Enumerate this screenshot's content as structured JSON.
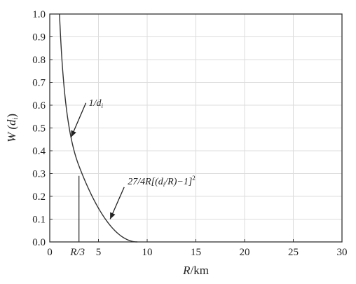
{
  "chart_data": {
    "type": "line",
    "xlabel": "R/km",
    "ylabel": "W (d_i)",
    "xlim": [
      0,
      30
    ],
    "ylim": [
      0,
      1.0
    ],
    "x_ticks": [
      0,
      5,
      10,
      15,
      20,
      25,
      30
    ],
    "x_tick_labels": [
      "0",
      "5",
      "10",
      "15",
      "20",
      "25",
      "30"
    ],
    "y_ticks": [
      0,
      0.1,
      0.2,
      0.3,
      0.4,
      0.5,
      0.6,
      0.7,
      0.8,
      0.9,
      1.0
    ],
    "y_tick_labels": [
      "0.0",
      "0.1",
      "0.2",
      "0.3",
      "0.4",
      "0.5",
      "0.6",
      "0.7",
      "0.8",
      "0.9",
      "1.0"
    ],
    "grid": true,
    "series": [
      {
        "x": [
          1.0,
          1.2,
          1.5,
          2.0,
          2.5,
          3.0
        ],
        "y": [
          1.0,
          0.833,
          0.667,
          0.5,
          0.4,
          0.333
        ]
      },
      {
        "x": [
          3.0,
          4.0,
          5.0,
          6.0,
          7.0,
          8.0,
          9.0
        ],
        "y": [
          0.333,
          0.198,
          0.11,
          0.049,
          0.012,
          0.0015,
          0.0
        ]
      }
    ],
    "vertical_marker": {
      "x": 3.0,
      "y_top": 0.29,
      "label": "R/3"
    },
    "annotations": [
      {
        "text": "1/d",
        "subscript": "i",
        "x": 4.0,
        "y": 0.61,
        "arrow_to": [
          2.2,
          0.46
        ]
      },
      {
        "text": "27/4R[(d",
        "subscript": "i",
        "text_after": "/R)−1]",
        "superscript": "2",
        "x": 8.0,
        "y": 0.265,
        "arrow_to": [
          6.2,
          0.1
        ]
      }
    ]
  }
}
